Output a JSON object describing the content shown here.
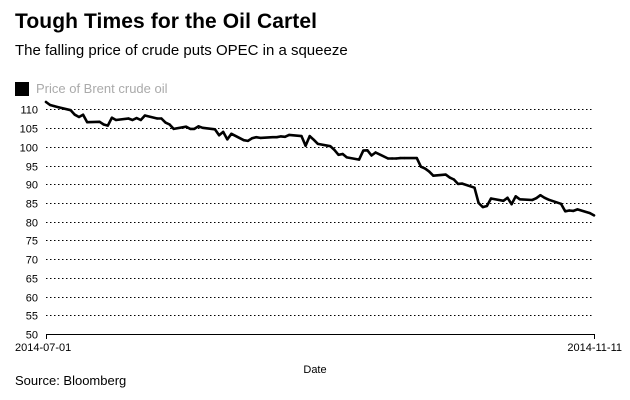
{
  "title": "Tough Times for the Oil Cartel",
  "subtitle": "The falling price of crude puts OPEC in a squeeze",
  "source": "Source: Bloomberg",
  "chart_data": {
    "type": "line",
    "xlabel": "Date",
    "ylabel": "",
    "x_tick_labels": [
      "2014-07-01",
      "2014-11-11"
    ],
    "xlim": [
      "2014-07-01",
      "2014-11-11"
    ],
    "ylim": [
      50,
      112
    ],
    "y_ticks": [
      50,
      55,
      60,
      65,
      70,
      75,
      80,
      85,
      90,
      95,
      100,
      105,
      110
    ],
    "grid": "horizontal dotted",
    "legend_position": "top-left",
    "series": [
      {
        "name": "Price of Brent crude oil",
        "color": "#000000",
        "x": [
          "2014-07-01",
          "2014-07-02",
          "2014-07-03",
          "2014-07-04",
          "2014-07-07",
          "2014-07-08",
          "2014-07-09",
          "2014-07-10",
          "2014-07-11",
          "2014-07-14",
          "2014-07-15",
          "2014-07-16",
          "2014-07-17",
          "2014-07-18",
          "2014-07-21",
          "2014-07-22",
          "2014-07-23",
          "2014-07-24",
          "2014-07-25",
          "2014-07-28",
          "2014-07-29",
          "2014-07-30",
          "2014-07-31",
          "2014-08-01",
          "2014-08-04",
          "2014-08-05",
          "2014-08-06",
          "2014-08-07",
          "2014-08-08",
          "2014-08-11",
          "2014-08-12",
          "2014-08-13",
          "2014-08-14",
          "2014-08-15",
          "2014-08-18",
          "2014-08-19",
          "2014-08-20",
          "2014-08-21",
          "2014-08-22",
          "2014-08-25",
          "2014-08-26",
          "2014-08-27",
          "2014-08-28",
          "2014-08-29",
          "2014-09-01",
          "2014-09-02",
          "2014-09-03",
          "2014-09-04",
          "2014-09-05",
          "2014-09-08",
          "2014-09-09",
          "2014-09-10",
          "2014-09-11",
          "2014-09-12",
          "2014-09-15",
          "2014-09-16",
          "2014-09-17",
          "2014-09-18",
          "2014-09-19",
          "2014-09-22",
          "2014-09-23",
          "2014-09-24",
          "2014-09-25",
          "2014-09-26",
          "2014-09-29",
          "2014-09-30",
          "2014-10-01",
          "2014-10-02",
          "2014-10-03",
          "2014-10-06",
          "2014-10-07",
          "2014-10-08",
          "2014-10-09",
          "2014-10-10",
          "2014-10-13",
          "2014-10-14",
          "2014-10-15",
          "2014-10-16",
          "2014-10-17",
          "2014-10-20",
          "2014-10-21",
          "2014-10-22",
          "2014-10-23",
          "2014-10-24",
          "2014-10-27",
          "2014-10-28",
          "2014-10-29",
          "2014-10-30",
          "2014-10-31",
          "2014-11-03",
          "2014-11-04",
          "2014-11-05",
          "2014-11-06",
          "2014-11-07",
          "2014-11-10",
          "2014-11-11"
        ],
        "values": [
          112.0,
          111.2,
          110.9,
          110.6,
          109.8,
          108.6,
          108.0,
          108.6,
          106.6,
          106.7,
          106.0,
          105.7,
          107.8,
          107.2,
          107.6,
          107.2,
          107.7,
          107.2,
          108.4,
          107.6,
          107.6,
          106.5,
          106.0,
          104.8,
          105.4,
          104.8,
          104.8,
          105.5,
          105.1,
          104.7,
          103.1,
          104.0,
          102.0,
          103.5,
          101.8,
          101.6,
          102.3,
          102.6,
          102.4,
          102.6,
          102.6,
          102.8,
          102.7,
          103.2,
          102.9,
          100.3,
          102.9,
          101.9,
          100.8,
          100.2,
          99.2,
          97.9,
          98.1,
          97.2,
          96.6,
          99.0,
          99.1,
          97.7,
          98.5,
          96.9,
          96.9,
          96.9,
          97.0,
          97.0,
          97.0,
          94.7,
          94.2,
          93.4,
          92.3,
          92.6,
          91.8,
          91.3,
          90.1,
          90.2,
          89.1,
          85.0,
          83.9,
          84.2,
          86.2,
          85.6,
          86.4,
          84.7,
          86.8,
          86.0,
          85.8,
          86.3,
          87.1,
          86.4,
          85.9,
          84.8,
          82.8,
          83.0,
          82.9,
          83.3,
          82.3,
          81.7
        ]
      }
    ]
  }
}
